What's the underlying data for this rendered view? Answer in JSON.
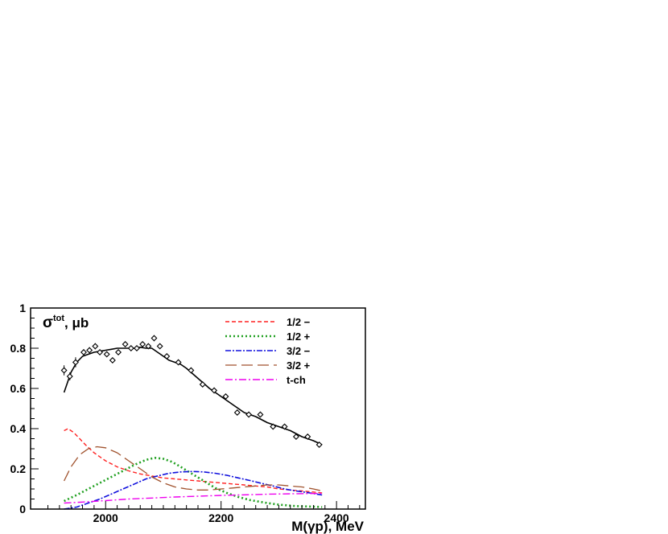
{
  "chart_data": {
    "type": "line",
    "xlabel": "M(γp), MeV",
    "ylabel": "σ^tot, μb",
    "ylabel_parts": {
      "symbol": "σ",
      "superscript": "tot",
      "unit": ", μb"
    },
    "xlim": [
      1870,
      2450
    ],
    "ylim": [
      0,
      1
    ],
    "x_ticks": [
      2000,
      2200,
      2400
    ],
    "y_ticks": [
      0,
      0.2,
      0.4,
      0.6,
      0.8,
      1
    ],
    "y_tick_labels": [
      "0",
      "0.2",
      "0.4",
      "0.6",
      "0.8",
      "1"
    ],
    "grid": false,
    "legend_position": "top-right",
    "data_points": {
      "marker": "open-diamond",
      "x": [
        1928,
        1938,
        1948,
        1962,
        1972,
        1982,
        1990,
        2002,
        2012,
        2022,
        2034,
        2044,
        2054,
        2064,
        2074,
        2084,
        2094,
        2106,
        2126,
        2148,
        2168,
        2188,
        2208,
        2228,
        2248,
        2268,
        2290,
        2310,
        2330,
        2350,
        2370
      ],
      "y": [
        0.69,
        0.66,
        0.73,
        0.78,
        0.79,
        0.81,
        0.78,
        0.77,
        0.74,
        0.78,
        0.82,
        0.8,
        0.8,
        0.82,
        0.81,
        0.85,
        0.81,
        0.76,
        0.73,
        0.69,
        0.62,
        0.59,
        0.56,
        0.48,
        0.47,
        0.47,
        0.41,
        0.41,
        0.36,
        0.36,
        0.32
      ],
      "err": [
        0.025,
        0.02,
        0.025,
        0.015,
        0.015,
        0.015,
        0.01,
        0.01,
        0.01,
        0.01,
        0.01,
        0.01,
        0.01,
        0.01,
        0.01,
        0.015,
        0.012,
        0.01,
        0.01,
        0.01,
        0.01,
        0.01,
        0.01,
        0.01,
        0.01,
        0.01,
        0.01,
        0.01,
        0.01,
        0.01,
        0.01
      ]
    },
    "total_fit": {
      "color": "#000000",
      "x": [
        1928,
        1940,
        1950,
        1960,
        1970,
        1980,
        1990,
        2000,
        2010,
        2020,
        2030,
        2040,
        2050,
        2060,
        2070,
        2080,
        2090,
        2100,
        2110,
        2120,
        2130,
        2140,
        2160,
        2180,
        2200,
        2220,
        2240,
        2260,
        2280,
        2300,
        2320,
        2340,
        2360,
        2375
      ],
      "y": [
        0.58,
        0.68,
        0.73,
        0.76,
        0.77,
        0.78,
        0.785,
        0.79,
        0.795,
        0.8,
        0.8,
        0.8,
        0.8,
        0.805,
        0.8,
        0.8,
        0.78,
        0.76,
        0.74,
        0.73,
        0.72,
        0.7,
        0.65,
        0.6,
        0.56,
        0.52,
        0.48,
        0.46,
        0.43,
        0.41,
        0.39,
        0.36,
        0.34,
        0.32
      ]
    },
    "series": [
      {
        "name": "1/2 −",
        "color": "#ff2020",
        "dash": "5,3",
        "width": 1.4,
        "x": [
          1928,
          1935,
          1945,
          1955,
          1965,
          1980,
          2000,
          2020,
          2040,
          2060,
          2080,
          2100,
          2120,
          2140,
          2160,
          2180,
          2200,
          2220,
          2240,
          2260,
          2280,
          2300,
          2320,
          2340,
          2360,
          2375
        ],
        "y": [
          0.39,
          0.4,
          0.38,
          0.35,
          0.32,
          0.28,
          0.24,
          0.21,
          0.19,
          0.175,
          0.165,
          0.155,
          0.15,
          0.145,
          0.14,
          0.135,
          0.13,
          0.125,
          0.12,
          0.115,
          0.11,
          0.1,
          0.095,
          0.09,
          0.085,
          0.08
        ]
      },
      {
        "name": "1/2 +",
        "color": "#20a020",
        "dash": "2,3",
        "width": 2.6,
        "x": [
          1928,
          1950,
          1970,
          1990,
          2010,
          2030,
          2050,
          2070,
          2085,
          2100,
          2115,
          2130,
          2150,
          2170,
          2190,
          2210,
          2230,
          2250,
          2280,
          2300,
          2330,
          2360,
          2375
        ],
        "y": [
          0.04,
          0.07,
          0.1,
          0.13,
          0.16,
          0.19,
          0.22,
          0.245,
          0.255,
          0.25,
          0.235,
          0.21,
          0.175,
          0.14,
          0.105,
          0.08,
          0.06,
          0.045,
          0.03,
          0.022,
          0.015,
          0.012,
          0.01
        ]
      },
      {
        "name": "3/2 −",
        "color": "#1010dd",
        "dash": "7,2,2,2",
        "width": 1.6,
        "x": [
          1928,
          1950,
          1970,
          1990,
          2010,
          2030,
          2050,
          2070,
          2090,
          2110,
          2130,
          2150,
          2170,
          2190,
          2210,
          2230,
          2250,
          2270,
          2290,
          2310,
          2330,
          2350,
          2375
        ],
        "y": [
          0.0,
          0.01,
          0.03,
          0.05,
          0.075,
          0.1,
          0.125,
          0.15,
          0.165,
          0.178,
          0.185,
          0.187,
          0.185,
          0.178,
          0.168,
          0.155,
          0.142,
          0.128,
          0.115,
          0.1,
          0.09,
          0.082,
          0.07
        ]
      },
      {
        "name": "3/2 +",
        "color": "#a0522d",
        "dash": "14,6",
        "width": 1.3,
        "x": [
          1928,
          1940,
          1955,
          1970,
          1985,
          2000,
          2020,
          2040,
          2060,
          2080,
          2100,
          2120,
          2140,
          2160,
          2180,
          2200,
          2220,
          2240,
          2260,
          2280,
          2300,
          2320,
          2340,
          2360,
          2375
        ],
        "y": [
          0.14,
          0.21,
          0.27,
          0.3,
          0.31,
          0.305,
          0.28,
          0.24,
          0.2,
          0.16,
          0.13,
          0.11,
          0.1,
          0.095,
          0.095,
          0.1,
          0.105,
          0.11,
          0.115,
          0.12,
          0.12,
          0.115,
          0.11,
          0.1,
          0.09
        ]
      },
      {
        "name": "t-ch",
        "color": "#ee00ee",
        "dash": "9,3,2,3",
        "width": 1.4,
        "x": [
          1928,
          1960,
          2000,
          2040,
          2080,
          2120,
          2160,
          2200,
          2240,
          2280,
          2320,
          2375
        ],
        "y": [
          0.03,
          0.035,
          0.042,
          0.05,
          0.055,
          0.06,
          0.064,
          0.068,
          0.071,
          0.074,
          0.076,
          0.078
        ]
      }
    ]
  }
}
